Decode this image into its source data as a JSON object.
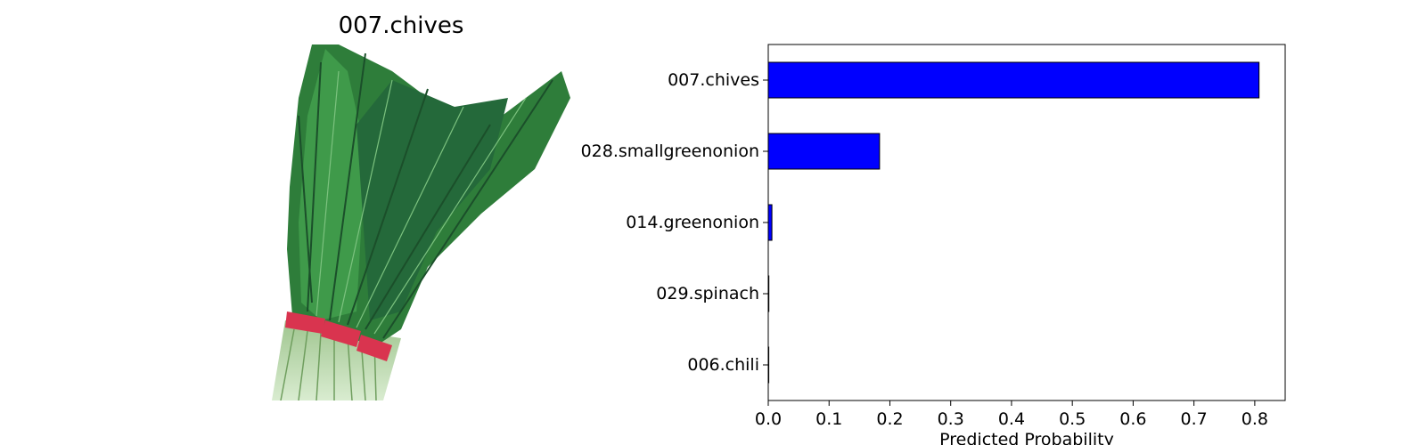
{
  "image_panel": {
    "title": "007.chives",
    "picture": "chives-bundle-photo"
  },
  "chart_data": {
    "type": "bar",
    "orientation": "horizontal",
    "categories": [
      "007.chives",
      "028.smallgreenonion",
      "014.greenonion",
      "029.spinach",
      "006.chili"
    ],
    "values": [
      0.807,
      0.183,
      0.006,
      0.001,
      0.0005
    ],
    "title": "",
    "xlabel": "Predicted Probability",
    "ylabel": "",
    "xlim": [
      0.0,
      0.85
    ],
    "xticks": [
      "0.0",
      "0.1",
      "0.2",
      "0.3",
      "0.4",
      "0.5",
      "0.6",
      "0.7",
      "0.8"
    ],
    "bar_color": "#0000ff",
    "edge_color": "#000000",
    "grid": false,
    "legend": "none"
  }
}
